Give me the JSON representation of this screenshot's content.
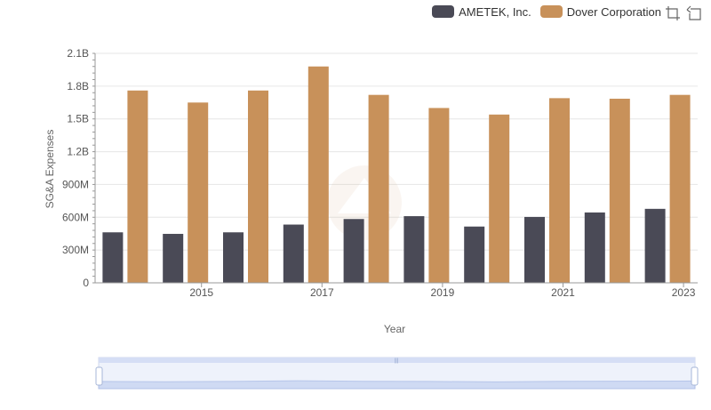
{
  "chart_data": {
    "type": "bar",
    "title": "",
    "xlabel": "Year",
    "ylabel": "SG&A Expenses",
    "x": [
      2014,
      2015,
      2016,
      2017,
      2018,
      2019,
      2020,
      2021,
      2022,
      2023
    ],
    "x_tick_labels": [
      "2015",
      "2017",
      "2019",
      "2021",
      "2023"
    ],
    "y_tick_labels": [
      "0",
      "300M",
      "600M",
      "900M",
      "1.2B",
      "1.5B",
      "1.8B",
      "2.1B"
    ],
    "ylim": [
      0,
      2100000000
    ],
    "grid": true,
    "legend_position": "top-right",
    "series": [
      {
        "name": "AMETEK, Inc.",
        "color": "#4a4a56",
        "values": [
          462000000,
          448000000,
          462000000,
          533000000,
          584000000,
          610000000,
          515000000,
          603000000,
          644000000,
          677000000
        ]
      },
      {
        "name": "Dover Corporation",
        "color": "#c8915a",
        "values": [
          1760000000,
          1650000000,
          1760000000,
          1980000000,
          1720000000,
          1600000000,
          1540000000,
          1690000000,
          1685000000,
          1720000000
        ]
      }
    ]
  },
  "toolbox": {
    "zoom_icon": "zoom-icon",
    "restore_icon": "restore-icon"
  },
  "data_zoom": {
    "handle_label": "|||"
  }
}
